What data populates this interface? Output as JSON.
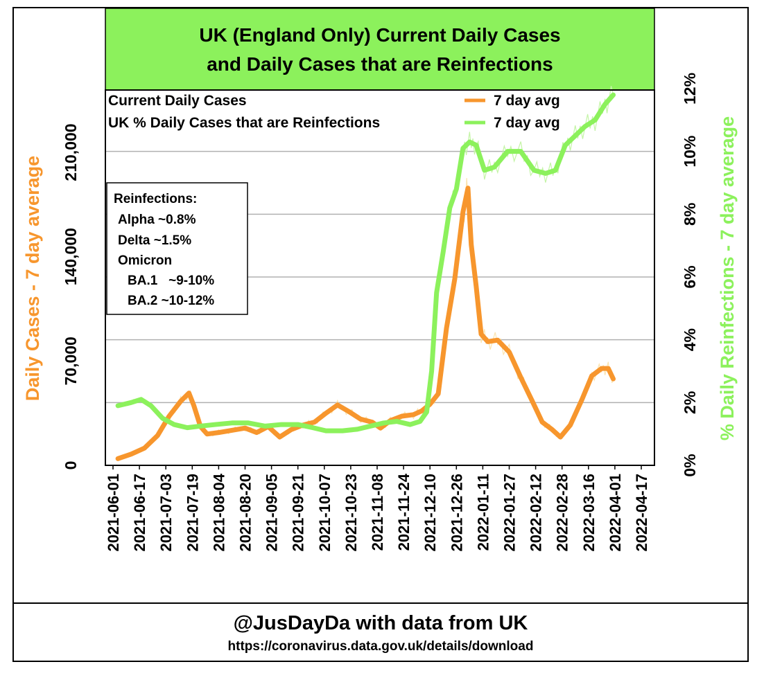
{
  "colors": {
    "cases": "#f7962d",
    "reinfections": "#8cf15c",
    "cases_raw": "#fbe4b0",
    "reinfections_raw": "#c4f4a6",
    "title_bg": "#8cf15c",
    "grid": "#b0b0b0"
  },
  "chart_data": {
    "type": "line",
    "title": [
      "UK (England Only) Current Daily Cases",
      "and Daily Cases that are Reinfections"
    ],
    "xlabel": "",
    "ylabel_left": "Daily Cases - 7 day average",
    "ylabel_right": "% Daily Reinfections - 7 day average",
    "x_ticks": [
      "2021-06-01",
      "2021-06-17",
      "2021-07-03",
      "2021-07-19",
      "2021-08-04",
      "2021-08-20",
      "2021-09-05",
      "2021-09-21",
      "2021-10-07",
      "2021-10-23",
      "2021-11-08",
      "2021-11-24",
      "2021-12-10",
      "2021-12-26",
      "2022-01-11",
      "2022-01-27",
      "2022-02-12",
      "2022-02-28",
      "2022-03-16",
      "2022-04-01",
      "2022-04-17"
    ],
    "y_left": {
      "min": 0,
      "max": 210000,
      "ticks": [
        0,
        70000,
        140000,
        210000
      ],
      "tick_labels": [
        "0",
        "70,000",
        "140,000",
        "210,000"
      ]
    },
    "y_right": {
      "min": 0,
      "max": 12,
      "ticks": [
        0,
        2,
        4,
        6,
        8,
        10,
        12
      ],
      "tick_labels": [
        "0%",
        "2%",
        "4%",
        "6%",
        "8%",
        "10%",
        "12%"
      ]
    },
    "grid": true,
    "legend": {
      "placement": "top",
      "items": [
        {
          "label": "Current Daily Cases",
          "line_label": "7 day avg",
          "series": "cases"
        },
        {
          "label": "UK % Daily Cases that are Reinfections",
          "line_label": "7 day avg",
          "series": "reinfections"
        }
      ]
    },
    "annotation": [
      "Reinfections:",
      "Alpha ~0.8%",
      "Delta ~1.5%",
      "Omicron",
      "BA.1   ~9-10%",
      "BA.2 ~10-12%"
    ],
    "series": [
      {
        "key": "cases",
        "axis": "left",
        "x": [
          "2021-06-04",
          "2021-06-12",
          "2021-06-20",
          "2021-06-28",
          "2021-07-05",
          "2021-07-12",
          "2021-07-17",
          "2021-07-20",
          "2021-07-24",
          "2021-07-28",
          "2021-08-04",
          "2021-08-12",
          "2021-08-20",
          "2021-08-27",
          "2021-09-03",
          "2021-09-10",
          "2021-09-17",
          "2021-09-24",
          "2021-10-01",
          "2021-10-08",
          "2021-10-15",
          "2021-10-22",
          "2021-10-29",
          "2021-11-05",
          "2021-11-10",
          "2021-11-16",
          "2021-11-23",
          "2021-11-30",
          "2021-12-05",
          "2021-12-10",
          "2021-12-15",
          "2021-12-20",
          "2021-12-25",
          "2021-12-30",
          "2022-01-02",
          "2022-01-04",
          "2022-01-07",
          "2022-01-10",
          "2022-01-14",
          "2022-01-20",
          "2022-01-27",
          "2022-02-03",
          "2022-02-10",
          "2022-02-16",
          "2022-02-22",
          "2022-02-27",
          "2022-03-05",
          "2022-03-12",
          "2022-03-18",
          "2022-03-24",
          "2022-03-28",
          "2022-03-31"
        ],
        "values": [
          4500,
          7500,
          11500,
          20000,
          33000,
          43000,
          48500,
          40000,
          26000,
          21000,
          22000,
          23500,
          25000,
          22000,
          26000,
          19000,
          24000,
          27000,
          29000,
          35000,
          40500,
          36000,
          31000,
          29000,
          25000,
          30000,
          33000,
          34000,
          36500,
          41000,
          48000,
          92000,
          125000,
          170000,
          186000,
          148000,
          120000,
          88000,
          83000,
          84000,
          76000,
          59000,
          43000,
          29000,
          24000,
          19000,
          27000,
          44000,
          60000,
          65000,
          65000,
          58000
        ]
      },
      {
        "key": "reinfections",
        "axis": "right",
        "x": [
          "2021-06-04",
          "2021-06-12",
          "2021-06-18",
          "2021-06-24",
          "2021-07-01",
          "2021-07-08",
          "2021-07-16",
          "2021-07-24",
          "2021-08-02",
          "2021-08-12",
          "2021-08-22",
          "2021-09-01",
          "2021-09-11",
          "2021-09-21",
          "2021-09-30",
          "2021-10-08",
          "2021-10-18",
          "2021-10-27",
          "2021-11-04",
          "2021-11-12",
          "2021-11-20",
          "2021-11-28",
          "2021-12-04",
          "2021-12-08",
          "2021-12-11",
          "2021-12-14",
          "2021-12-18",
          "2021-12-22",
          "2021-12-26",
          "2021-12-30",
          "2022-01-03",
          "2022-01-07",
          "2022-01-12",
          "2022-01-18",
          "2022-01-26",
          "2022-02-03",
          "2022-02-11",
          "2022-02-18",
          "2022-02-24",
          "2022-03-02",
          "2022-03-08",
          "2022-03-14",
          "2022-03-20",
          "2022-03-26",
          "2022-03-31"
        ],
        "values": [
          1.9,
          2.0,
          2.1,
          1.9,
          1.5,
          1.3,
          1.2,
          1.25,
          1.3,
          1.35,
          1.35,
          1.25,
          1.3,
          1.3,
          1.2,
          1.1,
          1.1,
          1.15,
          1.25,
          1.35,
          1.4,
          1.3,
          1.4,
          1.7,
          3.0,
          5.5,
          6.8,
          8.2,
          8.8,
          10.1,
          10.3,
          10.2,
          9.4,
          9.5,
          10.0,
          10.0,
          9.4,
          9.3,
          9.4,
          10.2,
          10.5,
          10.8,
          11.0,
          11.5,
          11.8
        ]
      }
    ]
  },
  "footer": {
    "line1": "@JusDayDa with data from UK",
    "line2": "https://coronavirus.data.gov.uk/details/download"
  }
}
